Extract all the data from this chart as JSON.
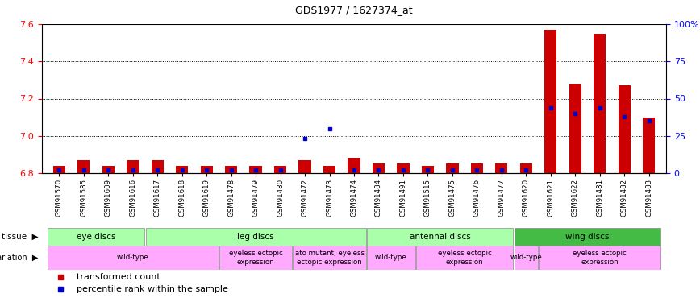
{
  "title": "GDS1977 / 1627374_at",
  "samples": [
    "GSM91570",
    "GSM91585",
    "GSM91609",
    "GSM91616",
    "GSM91617",
    "GSM91618",
    "GSM91619",
    "GSM91478",
    "GSM91479",
    "GSM91480",
    "GSM91472",
    "GSM91473",
    "GSM91474",
    "GSM91484",
    "GSM91491",
    "GSM91515",
    "GSM91475",
    "GSM91476",
    "GSM91477",
    "GSM91620",
    "GSM91621",
    "GSM91622",
    "GSM91481",
    "GSM91482",
    "GSM91483"
  ],
  "transformed_count": [
    6.84,
    6.87,
    6.84,
    6.87,
    6.87,
    6.84,
    6.84,
    6.84,
    6.84,
    6.84,
    6.87,
    6.84,
    6.88,
    6.85,
    6.85,
    6.84,
    6.85,
    6.85,
    6.85,
    6.85,
    7.57,
    7.28,
    7.55,
    7.27,
    7.1
  ],
  "percentile_rank": [
    2,
    2,
    2,
    2,
    2,
    2,
    2,
    2,
    2,
    2,
    23,
    30,
    2,
    2,
    2,
    2,
    2,
    2,
    2,
    2,
    44,
    40,
    44,
    38,
    35
  ],
  "ylim_left": [
    6.8,
    7.6
  ],
  "ylim_right": [
    0,
    100
  ],
  "yticks_left": [
    6.8,
    7.0,
    7.2,
    7.4,
    7.6
  ],
  "yticks_right": [
    0,
    25,
    50,
    75,
    100
  ],
  "ytick_labels_right": [
    "0",
    "25",
    "50",
    "75",
    "100%"
  ],
  "bar_color": "#cc0000",
  "dot_color": "#0000cc",
  "tissue_data": [
    {
      "label": "eye discs",
      "start": 0,
      "end": 3,
      "color": "#aaffaa"
    },
    {
      "label": "leg discs",
      "start": 4,
      "end": 12,
      "color": "#aaffaa"
    },
    {
      "label": "antennal discs",
      "start": 13,
      "end": 18,
      "color": "#aaffaa"
    },
    {
      "label": "wing discs",
      "start": 19,
      "end": 24,
      "color": "#44bb44"
    }
  ],
  "geno_data": [
    {
      "label": "wild-type",
      "start": 0,
      "end": 6,
      "color": "#ffaaff"
    },
    {
      "label": "eyeless ectopic\nexpression",
      "start": 7,
      "end": 9,
      "color": "#ffaaff"
    },
    {
      "label": "ato mutant, eyeless\nectopic expression",
      "start": 10,
      "end": 12,
      "color": "#ffaaff"
    },
    {
      "label": "wild-type",
      "start": 13,
      "end": 14,
      "color": "#ffaaff"
    },
    {
      "label": "eyeless ectopic\nexpression",
      "start": 15,
      "end": 18,
      "color": "#ffaaff"
    },
    {
      "label": "wild-type",
      "start": 19,
      "end": 19,
      "color": "#ffaaff"
    },
    {
      "label": "eyeless ectopic\nexpression",
      "start": 20,
      "end": 24,
      "color": "#ffaaff"
    }
  ],
  "legend_items": [
    {
      "label": "transformed count",
      "color": "#cc0000"
    },
    {
      "label": "percentile rank within the sample",
      "color": "#0000cc"
    }
  ]
}
